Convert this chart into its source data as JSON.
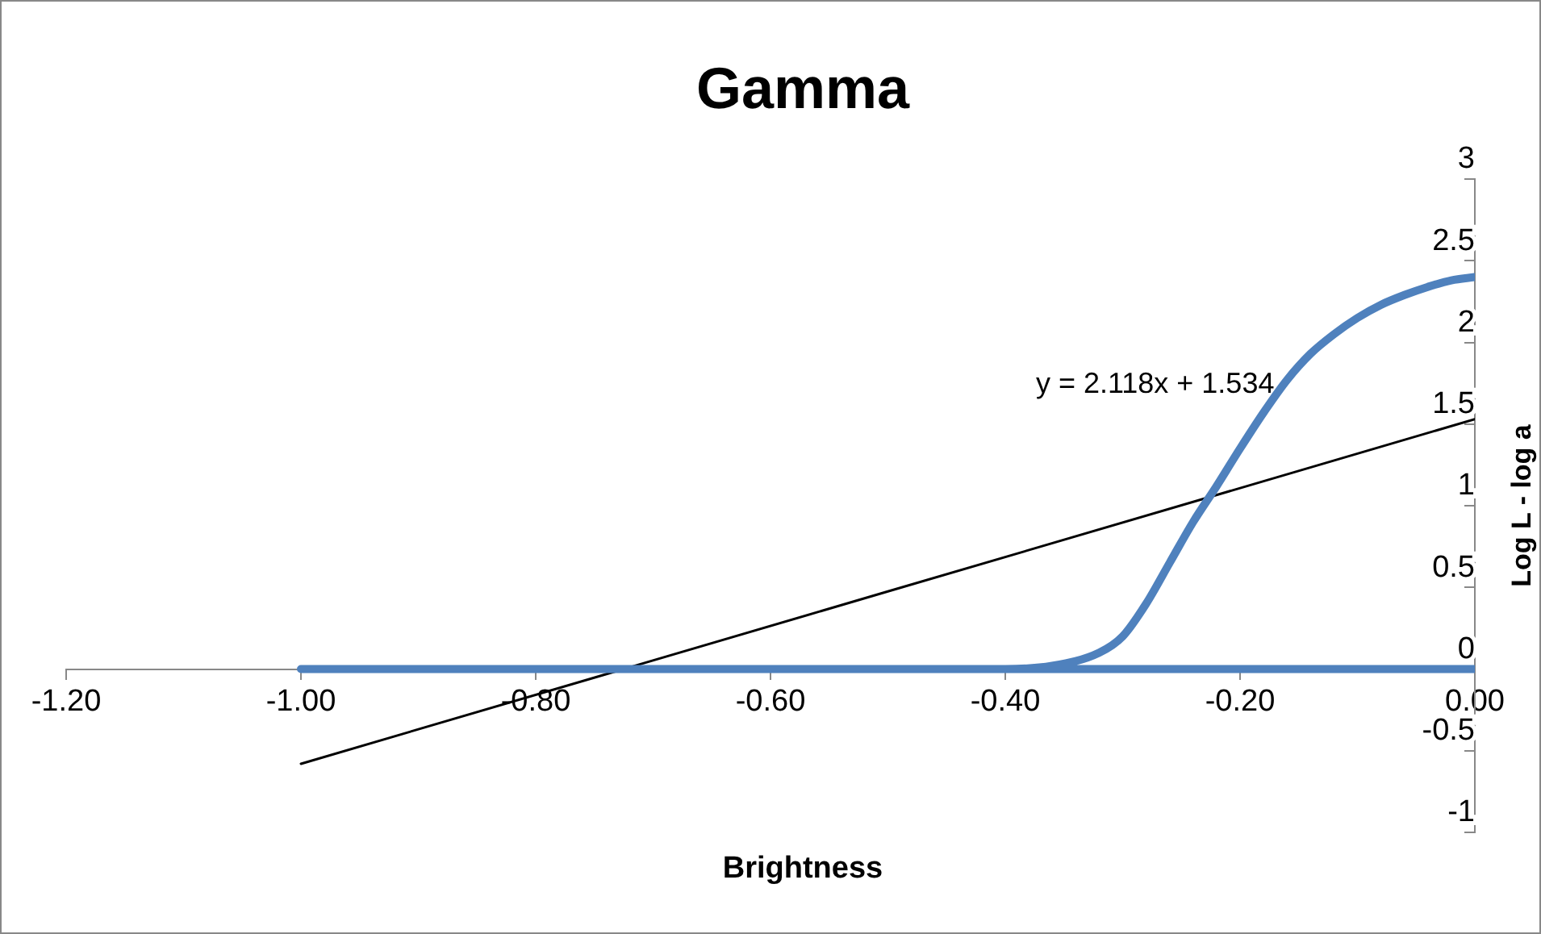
{
  "chart_data": {
    "type": "line",
    "title": "Gamma",
    "xlabel": "Brightness",
    "ylabel": "Log L - log a",
    "xlim": [
      -1.2,
      0
    ],
    "xticks": [
      {
        "value": -1.2,
        "label": "-1.20"
      },
      {
        "value": -1,
        "label": "-1.00"
      },
      {
        "value": -0.8,
        "label": "-0.80"
      },
      {
        "value": -0.6,
        "label": "-0.60"
      },
      {
        "value": -0.4,
        "label": "-0.40"
      },
      {
        "value": -0.2,
        "label": "-0.20"
      },
      {
        "value": 0,
        "label": "0.00"
      }
    ],
    "ylim": [
      -1,
      3
    ],
    "yticks": [
      -1,
      -0.5,
      0,
      0.5,
      1,
      1.5,
      2,
      2.5,
      3
    ],
    "grid": false,
    "legend": false,
    "marker": "none",
    "line_style": "solid",
    "series": [
      {
        "color": "#4f81bd",
        "x": [
          0,
          -1,
          -0.8,
          -0.6,
          -0.4,
          -0.36,
          -0.32,
          -0.3,
          -0.28,
          -0.26,
          -0.24,
          -0.22,
          -0.2,
          -0.18,
          -0.16,
          -0.14,
          -0.12,
          -0.1,
          -0.08,
          -0.06,
          -0.04,
          -0.02,
          0
        ],
        "values": [
          0,
          0,
          0,
          0,
          0,
          0.02,
          0.1,
          0.2,
          0.4,
          0.65,
          0.9,
          1.12,
          1.35,
          1.57,
          1.77,
          1.93,
          2.05,
          2.15,
          2.23,
          2.29,
          2.34,
          2.38,
          2.4
        ]
      },
      {
        "color": "#000000",
        "x": [
          -1,
          0
        ],
        "values": [
          -0.58,
          1.53
        ]
      }
    ],
    "annotations": [
      "y = 2.118x + 1.534"
    ]
  }
}
